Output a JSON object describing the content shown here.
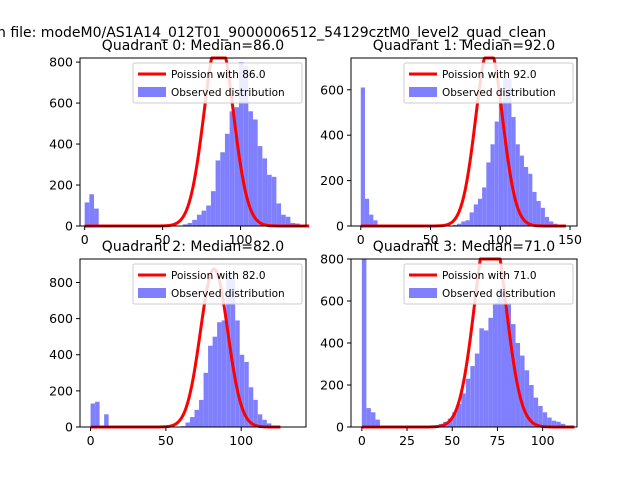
{
  "figure_title": "n file: modeM0/AS1A14_012T01_9000006512_54129cztM0_level2_quad_clean",
  "legend_observed": "Observed distribution",
  "colors": {
    "observed": "#8080ff",
    "poisson": "#ff0000"
  },
  "chart_data": [
    {
      "type": "bar+line",
      "title": "Quadrant 0: Median=86.0",
      "poisson_label": "Poission with 86.0",
      "median": 86,
      "x_start": 0,
      "bin_width": 3,
      "xlim": [
        -3,
        142
      ],
      "ylim": [
        0,
        820
      ],
      "xticks": [
        0,
        50,
        100
      ],
      "yticks": [
        0,
        200,
        400,
        600,
        800
      ],
      "values": [
        115,
        155,
        85,
        5,
        0,
        0,
        0,
        0,
        0,
        0,
        0,
        0,
        0,
        0,
        0,
        0,
        0,
        0,
        0,
        0,
        0,
        8,
        15,
        30,
        55,
        75,
        100,
        170,
        320,
        360,
        450,
        560,
        580,
        800,
        780,
        560,
        520,
        390,
        330,
        250,
        240,
        110,
        55,
        45,
        15,
        12,
        5,
        0
      ]
    },
    {
      "type": "bar+line",
      "title": "Quadrant 1: Median=92.0",
      "poisson_label": "Poission with 92.0",
      "median": 92,
      "x_start": 0,
      "bin_width": 3,
      "xlim": [
        -7,
        155
      ],
      "ylim": [
        0,
        740
      ],
      "xticks": [
        0,
        50,
        100,
        150
      ],
      "yticks": [
        0,
        200,
        400,
        600
      ],
      "values": [
        610,
        120,
        50,
        25,
        5,
        0,
        0,
        0,
        0,
        0,
        0,
        0,
        0,
        0,
        0,
        0,
        0,
        0,
        0,
        0,
        0,
        0,
        5,
        10,
        20,
        25,
        60,
        95,
        120,
        170,
        280,
        360,
        460,
        540,
        660,
        650,
        480,
        360,
        310,
        260,
        230,
        150,
        110,
        80,
        40,
        20,
        10,
        5,
        0
      ]
    },
    {
      "type": "bar+line",
      "title": "Quadrant 2: Median=82.0",
      "poisson_label": "Poission with 82.0",
      "median": 82,
      "x_start": 0,
      "bin_width": 3,
      "xlim": [
        -7,
        143
      ],
      "ylim": [
        0,
        930
      ],
      "xticks": [
        0,
        50,
        100
      ],
      "yticks": [
        0,
        200,
        400,
        600,
        800
      ],
      "values": [
        130,
        140,
        5,
        70,
        0,
        0,
        0,
        0,
        0,
        0,
        0,
        0,
        0,
        0,
        0,
        0,
        0,
        0,
        0,
        0,
        5,
        25,
        55,
        95,
        150,
        300,
        450,
        500,
        580,
        590,
        850,
        820,
        590,
        400,
        360,
        220,
        150,
        70,
        40,
        20,
        5,
        0
      ]
    },
    {
      "type": "bar+line",
      "title": "Quadrant 3: Median=71.0",
      "poisson_label": "Poission with 71.0",
      "median": 71,
      "x_start": 0,
      "bin_width": 2.5,
      "xlim": [
        -6,
        119
      ],
      "ylim": [
        0,
        800
      ],
      "xticks": [
        0,
        25,
        50,
        75,
        100
      ],
      "yticks": [
        0,
        200,
        400,
        600,
        800
      ],
      "values": [
        830,
        90,
        70,
        35,
        5,
        0,
        0,
        0,
        0,
        0,
        0,
        0,
        0,
        0,
        0,
        0,
        5,
        15,
        25,
        40,
        70,
        110,
        160,
        230,
        290,
        350,
        470,
        460,
        520,
        590,
        660,
        640,
        590,
        490,
        400,
        340,
        270,
        200,
        140,
        100,
        70,
        45,
        30,
        25,
        15,
        5,
        0
      ]
    }
  ]
}
